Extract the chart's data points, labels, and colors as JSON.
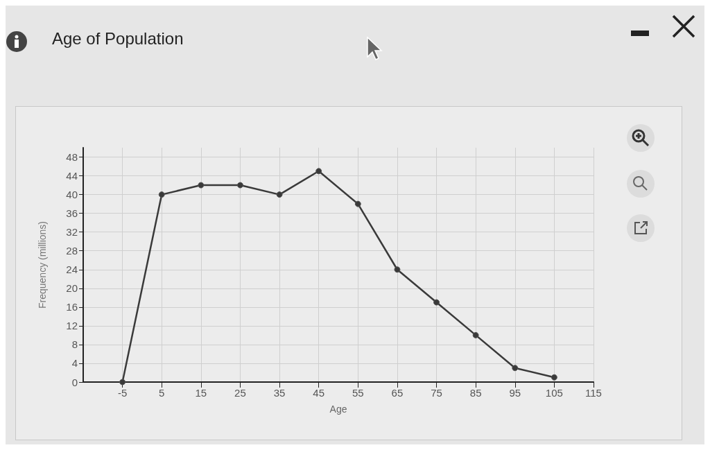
{
  "chart_data": {
    "type": "line",
    "title": "Age of Population",
    "xlabel": "Age",
    "ylabel": "Frequency (millions)",
    "x": [
      -5,
      5,
      15,
      25,
      35,
      45,
      55,
      65,
      75,
      85,
      95,
      105
    ],
    "series": [
      {
        "color": "#3a3a3a",
        "values": [
          0,
          40,
          42,
          42,
          40,
          45,
          38,
          24,
          17,
          10,
          3,
          1
        ]
      }
    ],
    "xlim": [
      -15,
      115
    ],
    "xticks": [
      -5,
      5,
      15,
      25,
      35,
      45,
      55,
      65,
      75,
      85,
      95,
      105,
      115
    ],
    "ylim": [
      0,
      50
    ],
    "yticks": [
      0,
      4,
      8,
      12,
      16,
      20,
      24,
      28,
      32,
      36,
      40,
      44,
      48
    ],
    "grid": true,
    "marker": "circle",
    "line_style": "solid"
  }
}
